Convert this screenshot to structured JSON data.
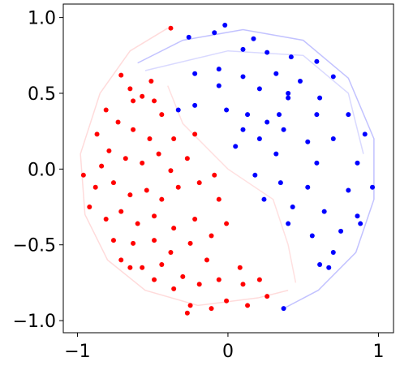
{
  "chart_data": {
    "type": "scatter",
    "xlim": [
      -1.094,
      1.1
    ],
    "ylim": [
      -1.08,
      1.089
    ],
    "xticks": [
      {
        "value": -1,
        "label": "−1"
      },
      0,
      1
    ],
    "yticks": [
      {
        "value": -1.0,
        "label": "−1.0"
      },
      {
        "value": -0.5,
        "label": "−0.5"
      },
      {
        "value": 0.0,
        "label": "0.0"
      },
      {
        "value": 0.5,
        "label": "0.5"
      },
      {
        "value": 1.0,
        "label": "1.0"
      }
    ],
    "series": [
      {
        "style": "line",
        "color": "#ff9999",
        "opacity": 0.35,
        "x": [
          -0.4,
          -0.65,
          -0.85,
          -0.98,
          -0.95,
          -0.8,
          -0.55,
          -0.2,
          0.2,
          0.4
        ],
        "y": [
          0.93,
          0.78,
          0.5,
          0.1,
          -0.3,
          -0.6,
          -0.8,
          -0.9,
          -0.85,
          -0.8
        ]
      },
      {
        "style": "line",
        "color": "#ff9999",
        "opacity": 0.3,
        "x": [
          -0.4,
          -0.3,
          -0.1,
          0,
          0.3,
          0.4,
          0.45
        ],
        "y": [
          0.55,
          0.3,
          0.1,
          0,
          -0.2,
          -0.5,
          -0.75
        ]
      },
      {
        "style": "line",
        "color": "#6666ff",
        "opacity": 0.4,
        "x": [
          -0.6,
          -0.3,
          0.1,
          0.5,
          0.8,
          0.97,
          0.97,
          0.85,
          0.6,
          0.37
        ],
        "y": [
          0.7,
          0.85,
          0.92,
          0.85,
          0.6,
          0.2,
          -0.2,
          -0.55,
          -0.8,
          -0.92
        ]
      },
      {
        "style": "line",
        "color": "#6666ff",
        "opacity": 0.25,
        "x": [
          -0.55,
          0,
          0.5,
          0.8,
          0.9
        ],
        "y": [
          0.65,
          0.78,
          0.75,
          0.5,
          0.1
        ]
      },
      {
        "style": "point",
        "color": "#ff0000",
        "opacity": 1,
        "x": [
          -0.38,
          -0.65,
          -0.57,
          -0.49,
          -0.81,
          -0.73,
          -0.63,
          -0.52,
          -0.87,
          -0.79,
          -0.68,
          -0.57,
          -0.46,
          -0.36,
          -0.22,
          -0.96,
          -0.88,
          -0.76,
          -0.65,
          -0.54,
          -0.44,
          -0.33,
          -0.19,
          -0.09,
          -0.06,
          -0.92,
          -0.81,
          -0.71,
          -0.6,
          -0.49,
          -0.36,
          -0.22,
          -0.11,
          -0.01,
          -0.76,
          -0.63,
          -0.49,
          -0.38,
          -0.25,
          -0.14,
          -0.71,
          -0.57,
          -0.44,
          -0.3,
          -0.19,
          -0.06,
          0.08,
          0.1,
          0.21,
          0.26,
          0.13,
          -0.01,
          -0.11,
          -0.25,
          -0.27,
          -0.36,
          -0.49,
          -0.65,
          -0.63,
          -0.44,
          -0.71,
          -0.51,
          -0.84,
          -0.38,
          -0.27
        ],
        "y": [
          0.93,
          0.53,
          0.48,
          0.45,
          0.39,
          0.31,
          0.26,
          0.2,
          0.23,
          0.12,
          0.07,
          0.04,
          0.1,
          0.2,
          0.23,
          -0.04,
          -0.12,
          -0.09,
          -0.17,
          -0.14,
          -0.2,
          -0.12,
          -0.09,
          -0.04,
          -0.2,
          -0.25,
          -0.33,
          -0.28,
          -0.36,
          -0.31,
          -0.39,
          -0.33,
          -0.44,
          -0.36,
          -0.47,
          -0.49,
          -0.47,
          -0.55,
          -0.49,
          -0.6,
          -0.6,
          -0.65,
          -0.63,
          -0.71,
          -0.76,
          -0.73,
          -0.65,
          -0.76,
          -0.73,
          -0.84,
          -0.9,
          -0.87,
          -0.92,
          -0.9,
          -0.95,
          -0.79,
          -0.73,
          -0.65,
          0.45,
          0.36,
          0.62,
          0.58,
          0.02,
          -0.01,
          0.07
        ]
      },
      {
        "style": "point",
        "color": "#0000ff",
        "opacity": 1,
        "x": [
          -0.09,
          -0.02,
          -0.26,
          0.17,
          0.1,
          0.26,
          0.42,
          0.59,
          -0.22,
          -0.06,
          0.1,
          0.32,
          0.48,
          0.7,
          -0.06,
          0.21,
          0.4,
          -0.22,
          -0.33,
          -0.01,
          0.13,
          0.26,
          0.59,
          0.8,
          0.1,
          0.21,
          0.37,
          0.53,
          0.7,
          0.91,
          0.05,
          0.32,
          0.59,
          0.86,
          0.18,
          0.35,
          0.53,
          0.8,
          0.96,
          0.24,
          0.43,
          0.64,
          0.86,
          0.4,
          0.56,
          0.75,
          0.88,
          0.7,
          0.61,
          0.67,
          0.37,
          0.4,
          0.34,
          0.61
        ],
        "y": [
          0.9,
          0.95,
          0.87,
          0.86,
          0.79,
          0.77,
          0.74,
          0.71,
          0.63,
          0.66,
          0.61,
          0.63,
          0.58,
          0.61,
          0.55,
          0.53,
          0.47,
          0.42,
          0.39,
          0.39,
          0.36,
          0.31,
          0.36,
          0.36,
          0.26,
          0.2,
          0.26,
          0.18,
          0.2,
          0.23,
          0.15,
          0.1,
          0.04,
          0.04,
          -0.04,
          -0.09,
          -0.12,
          -0.14,
          -0.12,
          -0.2,
          -0.25,
          -0.28,
          -0.31,
          -0.36,
          -0.44,
          -0.41,
          -0.36,
          -0.55,
          -0.63,
          -0.65,
          -0.92,
          0.5,
          0.36,
          0.47
        ]
      }
    ]
  }
}
